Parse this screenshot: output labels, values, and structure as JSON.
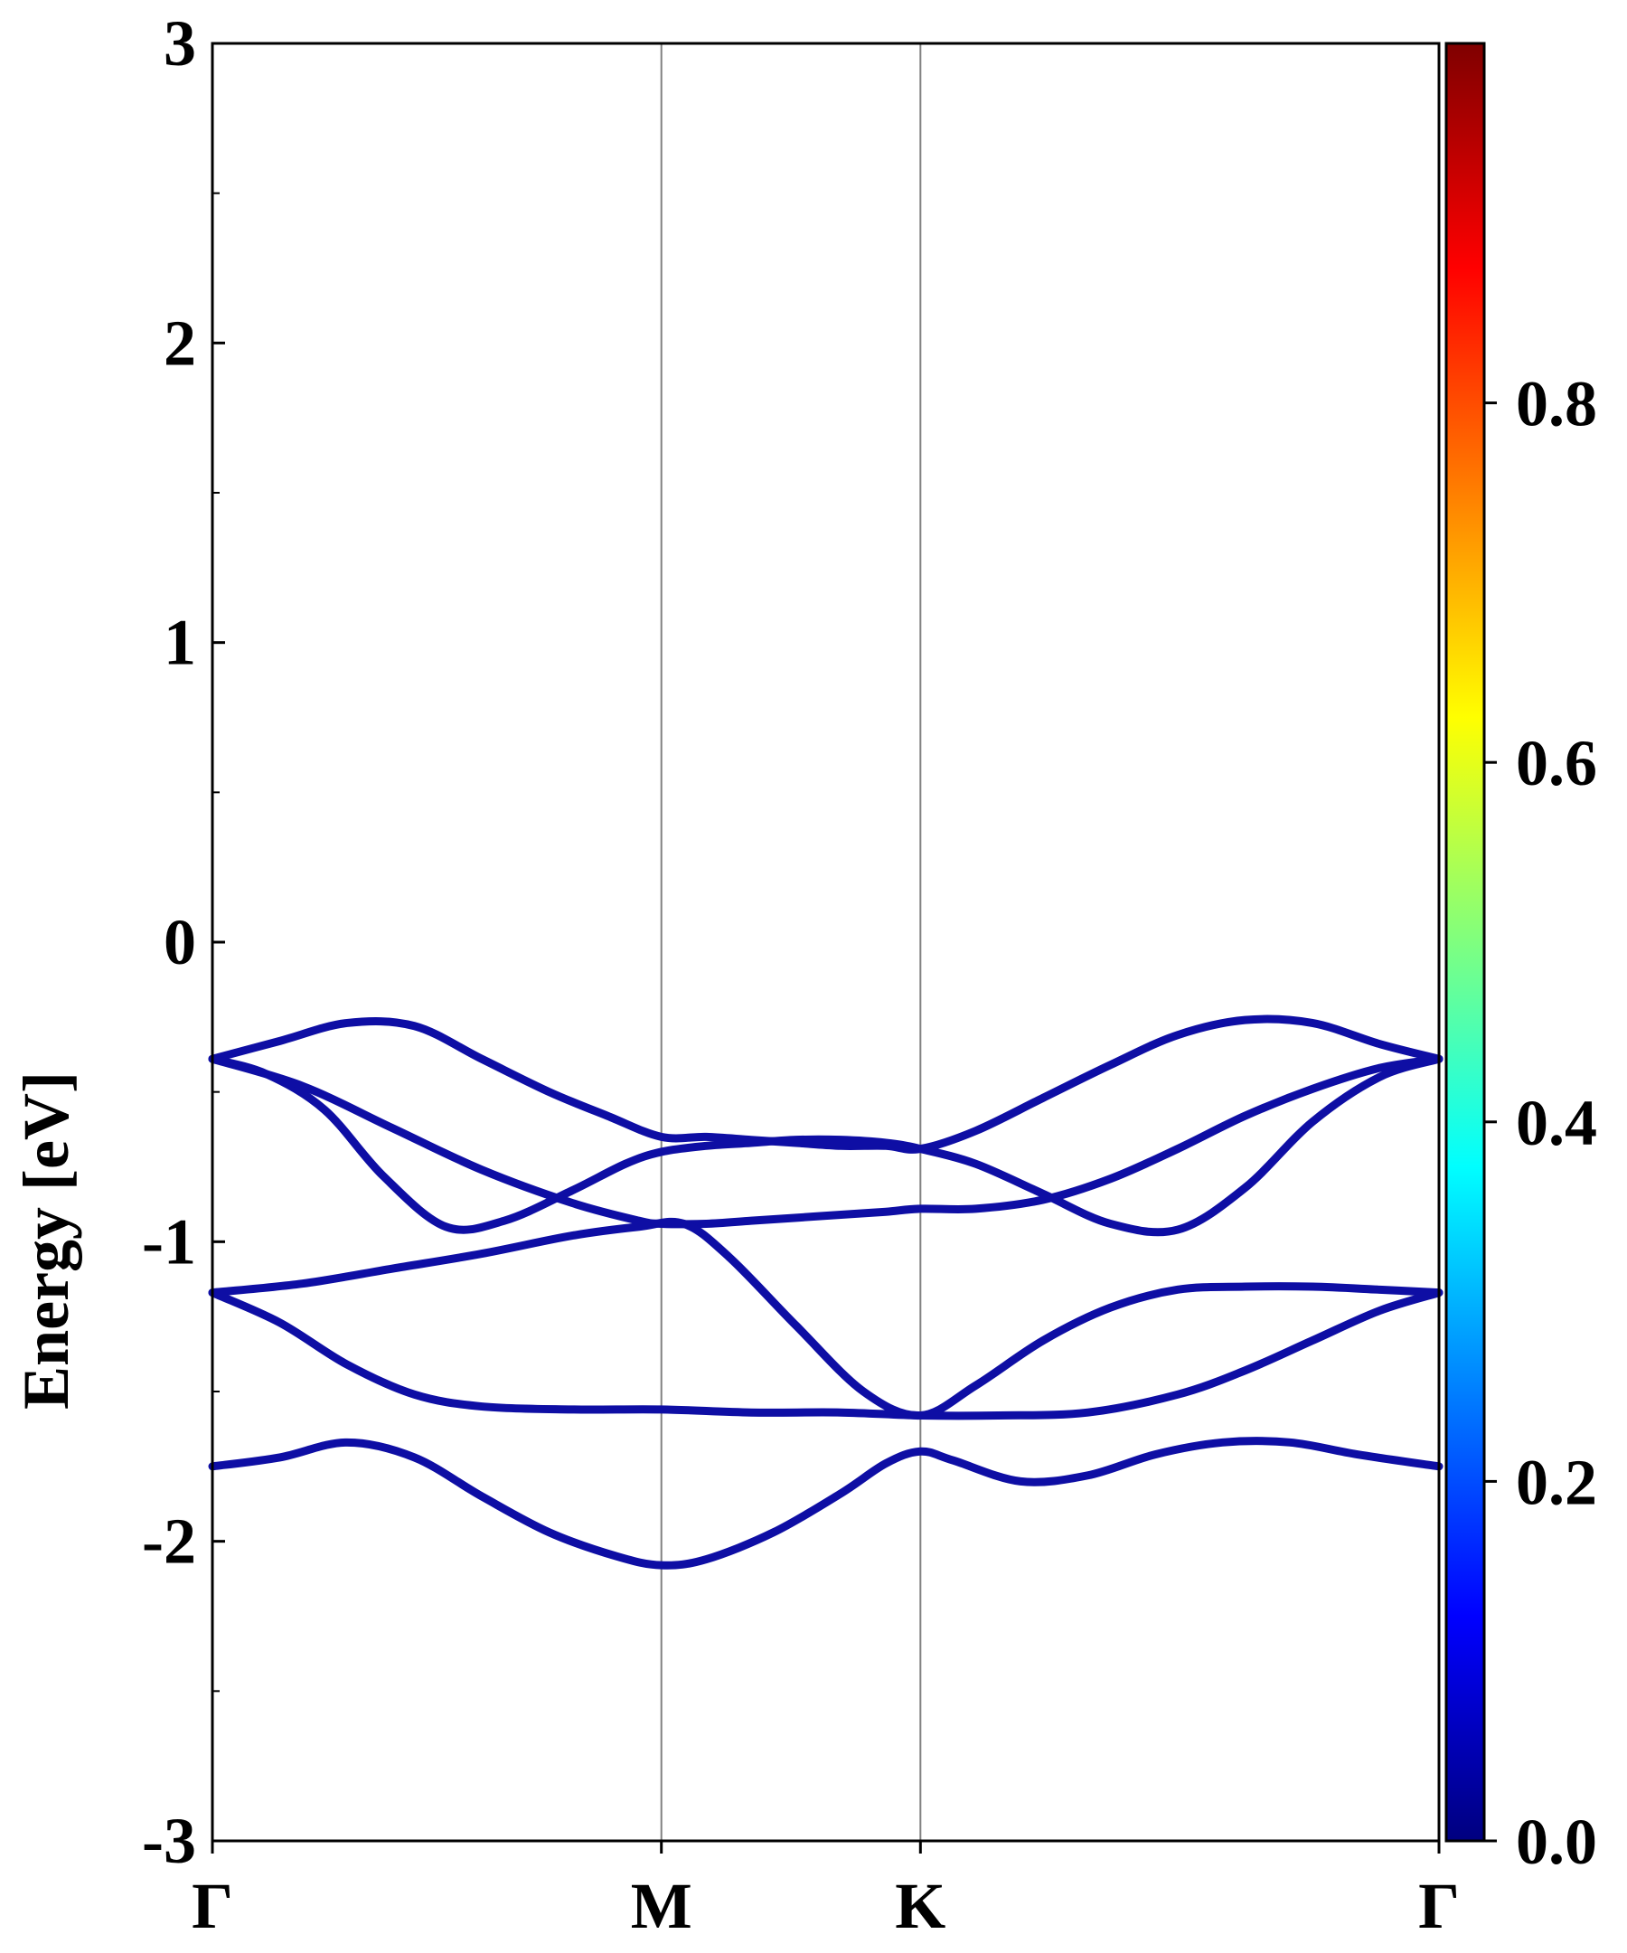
{
  "chart_data": {
    "type": "line",
    "title": "",
    "xlabel": "",
    "ylabel": "Energy [eV]",
    "ylim": [
      -3,
      3
    ],
    "y_ticks": [
      "-3",
      "-2",
      "-1",
      "0",
      "1",
      "2",
      "3"
    ],
    "x_ticks": [
      {
        "label": "Γ",
        "position": 0.0
      },
      {
        "label": "M",
        "position": 1.0
      },
      {
        "label": "K",
        "position": 1.577
      },
      {
        "label": "Γ",
        "position": 2.732
      }
    ],
    "vertical_lines_at": [
      1.0,
      1.577
    ],
    "xlim": [
      0,
      2.732
    ],
    "grid": false,
    "band_color": "#0e0ea4",
    "colorbar": {
      "range": [
        0.0,
        1.0
      ],
      "tick_labels": [
        "0.0",
        "0.2",
        "0.4",
        "0.6",
        "0.8"
      ],
      "tick_values": [
        0.0,
        0.2,
        0.4,
        0.6,
        0.8
      ],
      "colormap": "jet",
      "colormap_stops": [
        "#00007f",
        "#0000ff",
        "#007fff",
        "#00ffff",
        "#7fff7f",
        "#ffff00",
        "#ff7f00",
        "#ff0000",
        "#7f0000"
      ]
    },
    "series": [
      {
        "x": [
          0,
          0.15,
          0.3,
          0.45,
          0.6,
          0.75,
          0.88,
          1.0,
          1.1,
          1.2,
          1.3,
          1.4,
          1.5,
          1.577,
          1.7,
          1.85,
          2.0,
          2.15,
          2.3,
          2.45,
          2.6,
          2.732
        ],
        "values": [
          -0.39,
          -0.33,
          -0.27,
          -0.28,
          -0.39,
          -0.5,
          -0.58,
          -0.65,
          -0.65,
          -0.66,
          -0.67,
          -0.68,
          -0.68,
          -0.69,
          -0.63,
          -0.52,
          -0.41,
          -0.31,
          -0.26,
          -0.27,
          -0.34,
          -0.39
        ]
      },
      {
        "x": [
          0,
          0.12,
          0.25,
          0.38,
          0.52,
          0.65,
          0.8,
          0.92,
          1.0,
          1.1,
          1.2,
          1.3,
          1.4,
          1.5,
          1.577,
          1.7,
          1.85,
          2.0,
          2.15,
          2.3,
          2.45,
          2.6,
          2.732
        ],
        "values": [
          -0.39,
          -0.44,
          -0.56,
          -0.78,
          -0.95,
          -0.93,
          -0.83,
          -0.74,
          -0.7,
          -0.68,
          -0.67,
          -0.66,
          -0.66,
          -0.67,
          -0.69,
          -0.74,
          -0.84,
          -0.94,
          -0.96,
          -0.82,
          -0.6,
          -0.45,
          -0.39
        ]
      },
      {
        "x": [
          0,
          0.2,
          0.4,
          0.6,
          0.8,
          0.95,
          1.0,
          1.1,
          1.2,
          1.3,
          1.4,
          1.5,
          1.577,
          1.7,
          1.85,
          2.0,
          2.15,
          2.3,
          2.45,
          2.6,
          2.732
        ],
        "values": [
          -0.39,
          -0.48,
          -0.62,
          -0.76,
          -0.87,
          -0.93,
          -0.94,
          -0.94,
          -0.93,
          -0.92,
          -0.91,
          -0.9,
          -0.89,
          -0.89,
          -0.86,
          -0.79,
          -0.69,
          -0.58,
          -0.49,
          -0.42,
          -0.39
        ]
      },
      {
        "x": [
          0,
          0.2,
          0.4,
          0.6,
          0.8,
          0.95,
          1.05,
          1.15,
          1.3,
          1.45,
          1.577,
          1.7,
          1.85,
          2.0,
          2.15,
          2.3,
          2.45,
          2.6,
          2.732
        ],
        "values": [
          -1.17,
          -1.14,
          -1.09,
          -1.04,
          -0.98,
          -0.95,
          -0.94,
          -1.05,
          -1.28,
          -1.5,
          -1.58,
          -1.48,
          -1.33,
          -1.22,
          -1.16,
          -1.15,
          -1.15,
          -1.16,
          -1.17
        ]
      },
      {
        "x": [
          0,
          0.15,
          0.3,
          0.45,
          0.6,
          0.8,
          1.0,
          1.2,
          1.4,
          1.577,
          1.75,
          1.95,
          2.15,
          2.3,
          2.45,
          2.6,
          2.732
        ],
        "values": [
          -1.17,
          -1.27,
          -1.41,
          -1.51,
          -1.55,
          -1.56,
          -1.56,
          -1.57,
          -1.57,
          -1.58,
          -1.58,
          -1.57,
          -1.51,
          -1.43,
          -1.33,
          -1.23,
          -1.17
        ]
      },
      {
        "x": [
          0,
          0.15,
          0.3,
          0.45,
          0.6,
          0.75,
          0.9,
          1.0,
          1.1,
          1.25,
          1.4,
          1.5,
          1.577,
          1.65,
          1.8,
          1.95,
          2.1,
          2.25,
          2.4,
          2.55,
          2.732
        ],
        "values": [
          -1.75,
          -1.72,
          -1.67,
          -1.72,
          -1.85,
          -1.97,
          -2.05,
          -2.08,
          -2.06,
          -1.97,
          -1.84,
          -1.74,
          -1.7,
          -1.73,
          -1.8,
          -1.78,
          -1.71,
          -1.67,
          -1.67,
          -1.71,
          -1.75
        ]
      }
    ]
  }
}
